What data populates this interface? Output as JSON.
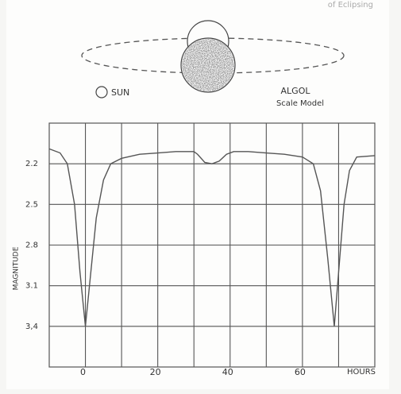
{
  "chart_data": {
    "type": "line",
    "header_fragment": "of Eclipsing",
    "annotations": [
      "SUN",
      "ALGOL",
      "Scale Model"
    ],
    "x_label": "HOURS",
    "y_label": "MAGNITUDE",
    "xlim": [
      -10,
      80
    ],
    "xticks": [
      0,
      20,
      40,
      60
    ],
    "xgrid": [
      0,
      10,
      20,
      30,
      40,
      50,
      60,
      70
    ],
    "ylim": [
      1.9,
      3.7
    ],
    "y_inverted": true,
    "yticks": [
      2.2,
      2.5,
      2.8,
      3.1,
      {
        "value": 3.4,
        "label": "3,4"
      }
    ],
    "grid": true,
    "x": [
      -10,
      -7,
      -5,
      -3,
      -1.5,
      0,
      1.5,
      3,
      5,
      7,
      10,
      15,
      20,
      25,
      30,
      31,
      33,
      35,
      37,
      39,
      41,
      45,
      50,
      55,
      60,
      63,
      65,
      67,
      68.8,
      70,
      71.5,
      73,
      75,
      80
    ],
    "series": [
      {
        "color": "#555555",
        "values": [
          2.09,
          2.12,
          2.2,
          2.5,
          3.0,
          3.4,
          3.0,
          2.6,
          2.32,
          2.2,
          2.16,
          2.13,
          2.12,
          2.11,
          2.11,
          2.13,
          2.19,
          2.2,
          2.18,
          2.13,
          2.11,
          2.11,
          2.12,
          2.13,
          2.15,
          2.2,
          2.4,
          2.9,
          3.4,
          3.0,
          2.5,
          2.25,
          2.15,
          2.14
        ]
      }
    ]
  }
}
